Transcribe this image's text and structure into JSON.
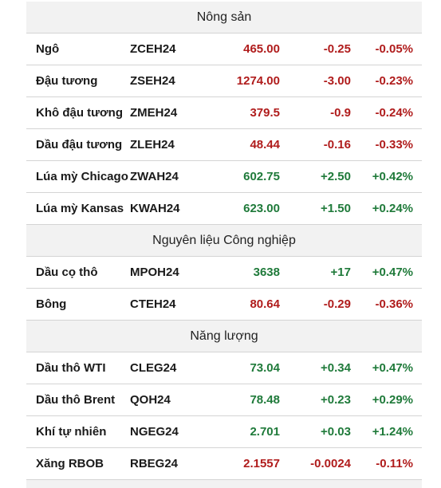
{
  "colors": {
    "down": "#b01c1c",
    "up": "#1f7a3a",
    "header_bg": "#f2f2f2"
  },
  "sections": [
    {
      "title": "Nông sản",
      "rows": [
        {
          "name": "Ngô",
          "code": "ZCEH24",
          "price": "465.00",
          "change": "-0.25",
          "pct": "-0.05%",
          "dir": "down"
        },
        {
          "name": "Đậu tương",
          "code": "ZSEH24",
          "price": "1274.00",
          "change": "-3.00",
          "pct": "-0.23%",
          "dir": "down"
        },
        {
          "name": "Khô đậu tương",
          "code": "ZMEH24",
          "price": "379.5",
          "change": "-0.9",
          "pct": "-0.24%",
          "dir": "down"
        },
        {
          "name": "Dầu đậu tương",
          "code": "ZLEH24",
          "price": "48.44",
          "change": "-0.16",
          "pct": "-0.33%",
          "dir": "down"
        },
        {
          "name": "Lúa mỳ Chicago",
          "code": "ZWAH24",
          "price": "602.75",
          "change": "+2.50",
          "pct": "+0.42%",
          "dir": "up"
        },
        {
          "name": "Lúa mỳ Kansas",
          "code": "KWAH24",
          "price": "623.00",
          "change": "+1.50",
          "pct": "+0.24%",
          "dir": "up"
        }
      ]
    },
    {
      "title": "Nguyên liệu Công nghiệp",
      "rows": [
        {
          "name": "Dầu cọ thô",
          "code": "MPOH24",
          "price": "3638",
          "change": "+17",
          "pct": "+0.47%",
          "dir": "up"
        },
        {
          "name": "Bông",
          "code": "CTEH24",
          "price": "80.64",
          "change": "-0.29",
          "pct": "-0.36%",
          "dir": "down"
        }
      ]
    },
    {
      "title": "Năng lượng",
      "rows": [
        {
          "name": "Dầu thô WTI",
          "code": "CLEG24",
          "price": "73.04",
          "change": "+0.34",
          "pct": "+0.47%",
          "dir": "up"
        },
        {
          "name": "Dầu thô Brent",
          "code": "QOH24",
          "price": "78.48",
          "change": "+0.23",
          "pct": "+0.29%",
          "dir": "up"
        },
        {
          "name": "Khí tự nhiên",
          "code": "NGEG24",
          "price": "2.701",
          "change": "+0.03",
          "pct": "+1.24%",
          "dir": "up"
        },
        {
          "name": "Xăng RBOB",
          "code": "RBEG24",
          "price": "2.1557",
          "change": "-0.0024",
          "pct": "-0.11%",
          "dir": "down"
        }
      ]
    }
  ]
}
